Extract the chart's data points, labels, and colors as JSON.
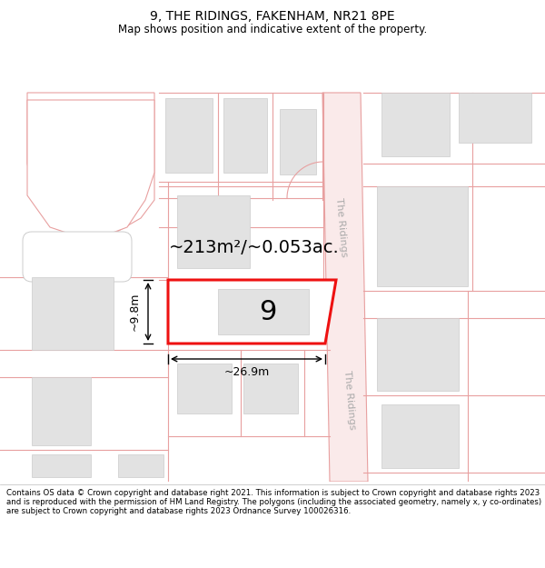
{
  "title": "9, THE RIDINGS, FAKENHAM, NR21 8PE",
  "subtitle": "Map shows position and indicative extent of the property.",
  "footer": "Contains OS data © Crown copyright and database right 2021. This information is subject to Crown copyright and database rights 2023 and is reproduced with the permission of HM Land Registry. The polygons (including the associated geometry, namely x, y co-ordinates) are subject to Crown copyright and database rights 2023 Ordnance Survey 100026316.",
  "bg_color": "#ffffff",
  "map_bg": "#ffffff",
  "road_color": "#e8a0a0",
  "road_fill": "#faeaea",
  "building_fill": "#e2e2e2",
  "building_edge": "#cccccc",
  "highlight_color": "#ee1111",
  "highlight_fill": "#ffffff",
  "area_text": "~213m²/~0.053ac.",
  "plot_number": "9",
  "dim_width": "~26.9m",
  "dim_height": "~9.8m",
  "road_label": "The Ridings",
  "road_text_color": "#aaaaaa",
  "title_fontsize": 10,
  "subtitle_fontsize": 8.5,
  "footer_fontsize": 6.2,
  "area_fontsize": 14,
  "plot_num_fontsize": 22,
  "dim_fontsize": 9
}
